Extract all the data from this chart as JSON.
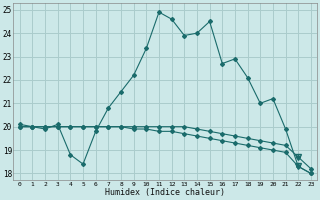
{
  "xlabel": "Humidex (Indice chaleur)",
  "bg_color": "#cce8e8",
  "grid_color": "#aacccc",
  "line_color": "#1a6b6b",
  "ylim": [
    17.7,
    25.3
  ],
  "xlim": [
    -0.5,
    23.5
  ],
  "yticks": [
    18,
    19,
    20,
    21,
    22,
    23,
    24,
    25
  ],
  "xticks": [
    0,
    1,
    2,
    3,
    4,
    5,
    6,
    7,
    8,
    9,
    10,
    11,
    12,
    13,
    14,
    15,
    16,
    17,
    18,
    19,
    20,
    21,
    22,
    23
  ],
  "series1_x": [
    0,
    1,
    2,
    3,
    4,
    5,
    6,
    7,
    8,
    9,
    10,
    11,
    12,
    13,
    14,
    15,
    16,
    17,
    18,
    19,
    20,
    21,
    22,
    23
  ],
  "series1_y": [
    20.1,
    20.0,
    19.9,
    20.1,
    18.8,
    18.4,
    19.8,
    20.8,
    21.5,
    22.2,
    23.35,
    24.9,
    24.6,
    23.9,
    24.0,
    24.5,
    22.7,
    22.9,
    22.1,
    21.0,
    21.2,
    19.9,
    18.3,
    18.0
  ],
  "series2_x": [
    0,
    1,
    2,
    3,
    4,
    5,
    6,
    7,
    8,
    9,
    10,
    11,
    12,
    13,
    14,
    15,
    16,
    17,
    18,
    19,
    20,
    21,
    22,
    23
  ],
  "series2_y": [
    20.0,
    20.0,
    20.0,
    20.0,
    20.0,
    20.0,
    20.0,
    20.0,
    20.0,
    19.9,
    19.9,
    19.8,
    19.8,
    19.7,
    19.6,
    19.5,
    19.4,
    19.3,
    19.2,
    19.1,
    19.0,
    18.9,
    18.3,
    18.0
  ],
  "series3_x": [
    0,
    1,
    2,
    3,
    4,
    5,
    6,
    7,
    8,
    9,
    10,
    11,
    12,
    13,
    14,
    15,
    16,
    17,
    18,
    19,
    20,
    21,
    22,
    23
  ],
  "series3_y": [
    20.0,
    20.0,
    20.0,
    20.0,
    20.0,
    20.0,
    20.0,
    20.0,
    20.0,
    20.0,
    20.0,
    20.0,
    20.0,
    20.0,
    19.9,
    19.8,
    19.7,
    19.6,
    19.5,
    19.4,
    19.3,
    19.2,
    18.7,
    18.2
  ],
  "tri_x": [
    22
  ],
  "tri_y2": [
    18.3
  ],
  "tri_y3": [
    18.7
  ]
}
